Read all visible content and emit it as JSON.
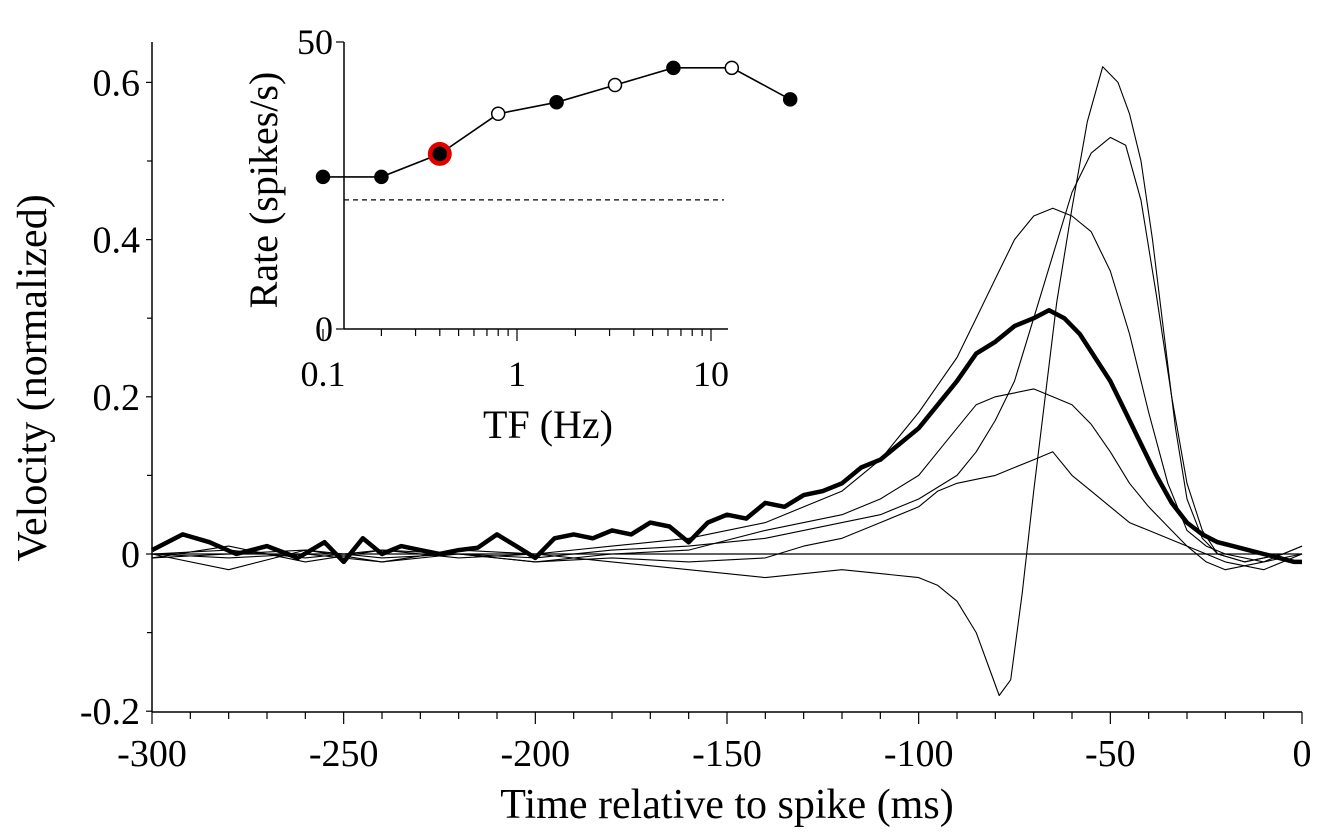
{
  "chart_data": [
    {
      "type": "line",
      "xlabel": "Time relative to spike (ms)",
      "ylabel": "Velocity (normalized)",
      "xlim": [
        -300,
        0
      ],
      "ylim": [
        -0.2,
        0.65
      ],
      "x_ticks": [
        -300,
        -250,
        -200,
        -150,
        -100,
        -50,
        0
      ],
      "x_tick_labels": [
        "-300",
        "-250",
        "-200",
        "-150",
        "-100",
        "-50",
        "0"
      ],
      "y_ticks": [
        -0.2,
        0,
        0.2,
        0.4,
        0.6
      ],
      "y_tick_labels": [
        "-0.2",
        "0",
        "0.2",
        "0.4",
        "0.6"
      ],
      "zero_line": true,
      "series": [
        {
          "role": "average",
          "color": "#000000",
          "bold": true,
          "x": [
            -300,
            -292,
            -285,
            -278,
            -270,
            -262,
            -255,
            -250,
            -245,
            -240,
            -235,
            -230,
            -225,
            -220,
            -215,
            -210,
            -205,
            -200,
            -195,
            -190,
            -185,
            -180,
            -175,
            -170,
            -165,
            -160,
            -155,
            -150,
            -145,
            -140,
            -135,
            -130,
            -125,
            -120,
            -115,
            -110,
            -105,
            -100,
            -95,
            -90,
            -85,
            -80,
            -75,
            -70,
            -66,
            -62,
            -58,
            -54,
            -50,
            -46,
            -42,
            -38,
            -34,
            -30,
            -26,
            -22,
            -18,
            -14,
            -10,
            -6,
            -2,
            0
          ],
          "y": [
            0.005,
            0.025,
            0.015,
            0.0,
            0.01,
            -0.005,
            0.015,
            -0.01,
            0.02,
            0.0,
            0.01,
            0.005,
            0.0,
            0.005,
            0.008,
            0.025,
            0.01,
            -0.005,
            0.02,
            0.025,
            0.02,
            0.03,
            0.025,
            0.04,
            0.035,
            0.015,
            0.04,
            0.05,
            0.045,
            0.065,
            0.06,
            0.075,
            0.08,
            0.09,
            0.11,
            0.12,
            0.14,
            0.16,
            0.19,
            0.22,
            0.255,
            0.27,
            0.29,
            0.3,
            0.31,
            0.3,
            0.28,
            0.25,
            0.22,
            0.18,
            0.14,
            0.1,
            0.065,
            0.04,
            0.025,
            0.015,
            0.01,
            0.005,
            0.0,
            -0.005,
            -0.01,
            -0.01
          ]
        },
        {
          "role": "individual",
          "color": "#000000",
          "x": [
            -300,
            -280,
            -260,
            -240,
            -220,
            -200,
            -180,
            -160,
            -140,
            -120,
            -110,
            -100,
            -95,
            -90,
            -85,
            -80,
            -75,
            -70,
            -65,
            -60,
            -55,
            -50,
            -45,
            -40,
            -35,
            -30,
            -25,
            -20,
            -10,
            0
          ],
          "y": [
            -0.005,
            0.01,
            -0.01,
            0.005,
            0.0,
            -0.01,
            0.0,
            0.005,
            0.03,
            0.05,
            0.07,
            0.1,
            0.13,
            0.16,
            0.19,
            0.2,
            0.205,
            0.21,
            0.2,
            0.19,
            0.165,
            0.13,
            0.09,
            0.06,
            0.035,
            0.01,
            -0.01,
            -0.02,
            -0.01,
            0.01
          ]
        },
        {
          "role": "individual",
          "color": "#000000",
          "x": [
            -300,
            -280,
            -260,
            -240,
            -220,
            -200,
            -180,
            -160,
            -140,
            -130,
            -120,
            -110,
            -100,
            -95,
            -90,
            -85,
            -80,
            -75,
            -70,
            -65,
            -60,
            -55,
            -50,
            -45,
            -40,
            -35,
            -30,
            -25,
            -20,
            -10,
            0
          ],
          "y": [
            0.0,
            -0.02,
            0.005,
            -0.01,
            0.0,
            -0.01,
            -0.005,
            -0.01,
            -0.005,
            0.01,
            0.02,
            0.04,
            0.06,
            0.08,
            0.09,
            0.095,
            0.1,
            0.11,
            0.12,
            0.13,
            0.1,
            0.08,
            0.06,
            0.04,
            0.03,
            0.02,
            0.01,
            0.0,
            -0.01,
            -0.02,
            0.0
          ]
        },
        {
          "role": "individual",
          "color": "#000000",
          "x": [
            -300,
            -280,
            -260,
            -240,
            -220,
            -200,
            -180,
            -160,
            -140,
            -120,
            -110,
            -100,
            -90,
            -85,
            -80,
            -75,
            -70,
            -65,
            -60,
            -55,
            -50,
            -45,
            -40,
            -35,
            -30,
            -25,
            -20,
            -10,
            0
          ],
          "y": [
            0.0,
            0.005,
            -0.005,
            0.005,
            -0.005,
            0.0,
            0.01,
            0.02,
            0.04,
            0.08,
            0.12,
            0.18,
            0.25,
            0.3,
            0.35,
            0.4,
            0.43,
            0.44,
            0.43,
            0.41,
            0.36,
            0.28,
            0.18,
            0.09,
            0.03,
            0.01,
            0.0,
            -0.01,
            0.0
          ]
        },
        {
          "role": "individual",
          "color": "#000000",
          "x": [
            -300,
            -280,
            -260,
            -240,
            -220,
            -200,
            -180,
            -160,
            -140,
            -120,
            -110,
            -100,
            -90,
            -85,
            -80,
            -75,
            -70,
            -65,
            -60,
            -55,
            -50,
            -46,
            -42,
            -38,
            -34,
            -30,
            -26,
            -22,
            -15,
            -5,
            0
          ],
          "y": [
            -0.005,
            0.0,
            0.005,
            -0.005,
            0.0,
            -0.005,
            0.005,
            0.01,
            0.02,
            0.04,
            0.05,
            0.07,
            0.1,
            0.13,
            0.17,
            0.22,
            0.3,
            0.38,
            0.46,
            0.51,
            0.53,
            0.52,
            0.45,
            0.33,
            0.2,
            0.09,
            0.03,
            0.0,
            -0.01,
            0.0,
            0.01
          ]
        },
        {
          "role": "individual",
          "color": "#000000",
          "x": [
            -300,
            -280,
            -260,
            -240,
            -220,
            -200,
            -180,
            -160,
            -140,
            -120,
            -110,
            -100,
            -95,
            -90,
            -85,
            -82,
            -79,
            -76,
            -73,
            -70,
            -67,
            -64,
            -60,
            -56,
            -52,
            -48,
            -45,
            -42,
            -39,
            -36,
            -33,
            -30,
            -26,
            -22,
            -15,
            -5,
            0
          ],
          "y": [
            0.0,
            -0.005,
            0.0,
            -0.01,
            0.005,
            0.0,
            -0.01,
            -0.02,
            -0.03,
            -0.02,
            -0.025,
            -0.03,
            -0.04,
            -0.06,
            -0.1,
            -0.14,
            -0.18,
            -0.16,
            -0.05,
            0.08,
            0.2,
            0.32,
            0.44,
            0.55,
            0.62,
            0.6,
            0.56,
            0.5,
            0.4,
            0.28,
            0.16,
            0.07,
            0.02,
            0.0,
            -0.01,
            0.0,
            0.0
          ]
        }
      ]
    },
    {
      "type": "scatter",
      "xlabel": "TF (Hz)",
      "ylabel": "Rate (spikes/s)",
      "x_scale": "log",
      "xlim": [
        0.05,
        40
      ],
      "ylim": [
        0,
        50
      ],
      "x_ticks": [
        0.1,
        1,
        10
      ],
      "x_tick_labels": [
        "0.1",
        "1",
        "10"
      ],
      "y_ticks": [
        0,
        50
      ],
      "y_tick_labels": [
        "0",
        "50"
      ],
      "baseline": 22.5,
      "series": [
        {
          "x": [
            0.1,
            0.2,
            0.4,
            0.8,
            1.6,
            3.2,
            6.4,
            12.8,
            25.6
          ],
          "y": [
            26.5,
            26.5,
            30.5,
            37.5,
            39.5,
            42.5,
            45.5,
            45.5,
            40
          ],
          "filled": [
            true,
            true,
            true,
            false,
            true,
            false,
            true,
            false,
            true
          ],
          "highlighted_index": 2,
          "highlight_color": "#e00000"
        }
      ]
    }
  ]
}
